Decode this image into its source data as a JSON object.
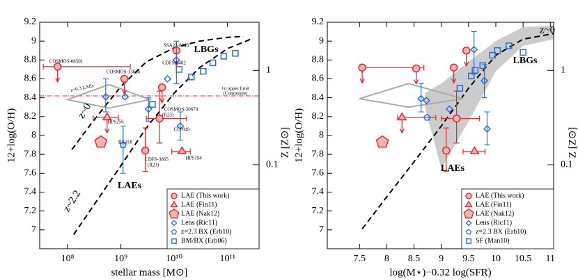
{
  "chart_data": [
    {
      "type": "scatter",
      "xlabel": "stellar mass [M⊙]",
      "ylabel": "12+log(O/H)",
      "y2label": "Z [Z⊙]",
      "xscale": "log",
      "xlim": [
        30000000,
        390000000000
      ],
      "xticks": [
        {
          "value": 100000000,
          "label": "10⁸"
        },
        {
          "value": 1000000000,
          "label": "10⁹"
        },
        {
          "value": 10000000000,
          "label": "10¹⁰"
        },
        {
          "value": 100000000000,
          "label": "10¹¹"
        }
      ],
      "ylim": [
        6.8,
        9.2
      ],
      "yticks": [
        7,
        7.2,
        7.4,
        7.6,
        7.8,
        8,
        8.2,
        8.4,
        8.6,
        8.8,
        9,
        9.2
      ],
      "y2scale": "log",
      "y2lim": [
        0.01288,
        3.236
      ],
      "y2ticks": [
        1,
        0.1
      ],
      "legend": "lower right",
      "series": [
        {
          "mode": "band",
          "color": "#cccccc",
          "x": [],
          "lower": [],
          "upper": []
        },
        {
          "mode": "hline",
          "color": "#e8262b",
          "values": [
            8.42
          ]
        },
        {
          "mode": "line",
          "color": "#000000",
          "x": [
            120000000,
            300000000,
            1000000000,
            3000000000,
            10000000000,
            30000000000,
            100000000000,
            200000000000
          ],
          "values": [
            7.85,
            8.15,
            8.52,
            8.78,
            8.93,
            9.0,
            9.04,
            9.05
          ]
        },
        {
          "mode": "line",
          "color": "#000000",
          "x": [
            130000000,
            300000000,
            1000000000,
            3000000000,
            10000000000,
            30000000000,
            100000000000,
            300000000000
          ],
          "values": [
            6.95,
            7.25,
            7.68,
            8.08,
            8.45,
            8.72,
            8.92,
            9.03
          ]
        },
        {
          "marker": "errdiamond",
          "color": "#aaaaaa",
          "x": [
            600000000
          ],
          "values": [
            8.38
          ],
          "xerr": [
            [
              100000000,
              3500000000
            ]
          ],
          "yerr": [
            [
              8.29,
              8.54
            ]
          ]
        },
        {
          "name": "LAE (This work)",
          "marker": "circle",
          "color": "#e8262b",
          "fill": "#f6b3b3",
          "x": [
            65000000,
            1160000000,
            5900000000,
            11000000000,
            5300000000,
            2860000000
          ],
          "values": [
            8.73,
            8.6,
            8.51,
            8.9,
            8.18,
            7.84
          ],
          "upper_limit": [
            true,
            true,
            true,
            true,
            false,
            false
          ],
          "xerr": [
            [
              35000000,
              1500000000
            ],
            null,
            null,
            null,
            [
              3000000000,
              17000000000
            ],
            null
          ],
          "yerr": [
            null,
            null,
            null,
            null,
            [
              7.92,
              8.47
            ],
            [
              7.62,
              8.08
            ]
          ]
        },
        {
          "name": "LAE (Fin11)",
          "marker": "triangle",
          "color": "#e8262b",
          "fill": "#f6b3b3",
          "x": [
            550000000,
            14000000000
          ],
          "values": [
            8.19,
            7.83
          ],
          "upper_limit": [
            true,
            false
          ],
          "xerr": [
            [
              300000000,
              900000000
            ],
            [
              9000000000,
              20000000000
            ]
          ]
        },
        {
          "name": "LAE (Nak12)",
          "marker": "pentagon",
          "color": "#e8262b",
          "fill": "#f6b3b3",
          "x": [
            420000000
          ],
          "values": [
            7.93
          ]
        },
        {
          "name": "Lens (Ric11)",
          "marker": "diamond",
          "color": "#2a6fdb",
          "x": [
            520000000,
            1200000000,
            3300000000,
            13000000000,
            11000000000,
            7500000000
          ],
          "values": [
            8.41,
            8.41,
            8.28,
            8.1,
            8.8,
            8.6
          ],
          "yerr": [
            [
              8.25,
              8.6
            ],
            null,
            [
              8.15,
              8.4
            ],
            [
              7.95,
              8.25
            ],
            [
              8.55,
              9.0
            ],
            null
          ]
        },
        {
          "name": "z=2.3 BX (Erb10)",
          "marker": "smallpentagon",
          "color": "#2a6fdb",
          "x": [
            1100000000
          ],
          "values": [
            7.9
          ],
          "yerr": [
            [
              7.6,
              8.1
            ]
          ]
        },
        {
          "name": "BM/BX (Erb06)",
          "marker": "square",
          "color": "#2a6fdb",
          "x": [
            3900000000,
            12400000000,
            21000000000,
            35000000000,
            53000000000,
            85000000000,
            140000000000
          ],
          "values": [
            8.33,
            8.7,
            8.62,
            8.68,
            8.77,
            8.84,
            8.87
          ]
        }
      ],
      "annotations": [
        {
          "text": "LBGs",
          "color": "#2a6fdb"
        },
        {
          "text": "LAEs",
          "color": "#e8262b"
        },
        {
          "text": "z~0",
          "color": "#000000"
        },
        {
          "text": "z~2.2",
          "color": "#000000"
        },
        {
          "text": "z~0.3 LAEs",
          "color": "#999999"
        },
        {
          "text": "1σ upper limit",
          "color": "#e8262b"
        },
        {
          "text": "(Composite)",
          "color": "#e8262b"
        },
        {
          "text": "COSMOS-08501",
          "color": "#e8262b"
        },
        {
          "text": "COSMOS-13636",
          "color": "#e8262b"
        },
        {
          "text": "CDFS-6482",
          "color": "#e8262b"
        },
        {
          "text": "SSA22-8043",
          "color": "#e8262b"
        },
        {
          "text": "COSMOS-30679",
          "color": "#e8262b"
        },
        {
          "text": "(R23)",
          "color": "#e8262b"
        },
        {
          "text": "CDFS-3865",
          "color": "#e8262b"
        },
        {
          "text": "(R23)",
          "color": "#e8262b"
        },
        {
          "text": "HPS256",
          "color": "#e8262b"
        },
        {
          "text": "HPS194",
          "color": "#e8262b"
        },
        {
          "text": "BX418",
          "color": "#2a6fdb"
        },
        {
          "text": "CL0949",
          "color": "#2a6fdb"
        }
      ]
    },
    {
      "type": "scatter",
      "xlabel": "log(M⋆)−0.32 log(SFR)",
      "ylabel": "12+log(O/H)",
      "y2label": "Z [Z⊙]",
      "xscale": "linear",
      "xlim": [
        6.91,
        11.06
      ],
      "xticks": [
        7.5,
        8,
        8.5,
        9,
        9.5,
        10,
        10.5,
        11
      ],
      "ylim": [
        6.8,
        9.2
      ],
      "yticks": [
        7,
        7.2,
        7.4,
        7.6,
        7.8,
        8,
        8.2,
        8.4,
        8.6,
        8.8,
        9,
        9.2
      ],
      "y2scale": "log",
      "y2lim": [
        0.01288,
        3.236
      ],
      "y2ticks": [
        1,
        0.1
      ],
      "legend": "lower right",
      "series": [
        {
          "mode": "band",
          "color": "#cccccc",
          "x": [
            8.7,
            9.0,
            9.5,
            10,
            10.5,
            11.06
          ],
          "lower": [
            8.3,
            7.65,
            8.15,
            8.68,
            8.95,
            9.02
          ],
          "upper": [
            8.45,
            8.55,
            8.78,
            9.0,
            9.15,
            9.16
          ]
        },
        {
          "mode": "line",
          "color": "#000000",
          "x": [
            7.55,
            8,
            8.5,
            9,
            9.5,
            10,
            10.5,
            11.06
          ],
          "values": [
            7.01,
            7.35,
            7.72,
            8.1,
            8.5,
            8.85,
            9.02,
            9.08
          ]
        },
        {
          "marker": "errdiamond",
          "color": "#aaaaaa",
          "x": [
            8.4
          ],
          "values": [
            8.39
          ],
          "xerr": [
            [
              7.5,
              9.4
            ]
          ],
          "yerr": [
            [
              8.3,
              8.55
            ]
          ]
        },
        {
          "name": "LAE (This work)",
          "marker": "circle",
          "color": "#e8262b",
          "fill": "#f6b3b3",
          "x": [
            7.55,
            8.54,
            9.23,
            9.46,
            9.28,
            9.09
          ],
          "values": [
            8.72,
            8.71,
            8.72,
            8.9,
            8.18,
            7.84
          ],
          "upper_limit": [
            true,
            true,
            true,
            true,
            false,
            false
          ],
          "xerr": [
            [
              7.5,
              8.68
            ],
            null,
            null,
            null,
            [
              9.0,
              9.7
            ],
            null
          ],
          "yerr": [
            null,
            null,
            null,
            null,
            [
              7.92,
              8.47
            ],
            [
              7.62,
              8.08
            ]
          ]
        },
        {
          "name": "LAE (Fin11)",
          "marker": "triangle",
          "color": "#e8262b",
          "fill": "#f6b3b3",
          "x": [
            8.28,
            9.61
          ],
          "values": [
            8.19,
            7.83
          ],
          "upper_limit": [
            true,
            false
          ],
          "xerr": [
            [
              8.2,
              8.9
            ],
            [
              9.4,
              9.8
            ]
          ]
        },
        {
          "name": "LAE (Nak12)",
          "marker": "pentagon",
          "color": "#e8262b",
          "fill": "#f6b3b3",
          "x": [
            7.92
          ],
          "values": [
            7.93
          ]
        },
        {
          "name": "Lens (Ric11)",
          "marker": "diamond",
          "color": "#2a6fdb",
          "x": [
            8.63,
            8.73,
            9.6,
            9.79,
            9.84,
            9.15
          ],
          "values": [
            8.39,
            8.37,
            8.91,
            8.58,
            8.07,
            8.28
          ],
          "yerr": [
            [
              8.25,
              8.55
            ],
            null,
            [
              8.65,
              9.1
            ],
            [
              8.4,
              8.75
            ],
            [
              7.9,
              8.25
            ],
            null
          ]
        },
        {
          "name": "z=2.3 BX (Erb10)",
          "marker": "smallpentagon",
          "color": "#2a6fdb",
          "x": [
            8.74
          ],
          "values": [
            8.19
          ]
        },
        {
          "name": "SF (Man10)",
          "marker": "square",
          "color": "#2a6fdb",
          "x": [
            9.34,
            9.55,
            9.62,
            9.76,
            9.94,
            10.03,
            10.24,
            10.5
          ],
          "values": [
            8.5,
            8.63,
            8.69,
            8.74,
            8.85,
            8.9,
            8.95,
            8.88
          ]
        }
      ],
      "annotations": [
        {
          "text": "LBGs",
          "color": "#2a6fdb"
        },
        {
          "text": "LAEs",
          "color": "#e8262b"
        },
        {
          "text": "z~0",
          "color": "#555555"
        }
      ]
    }
  ]
}
